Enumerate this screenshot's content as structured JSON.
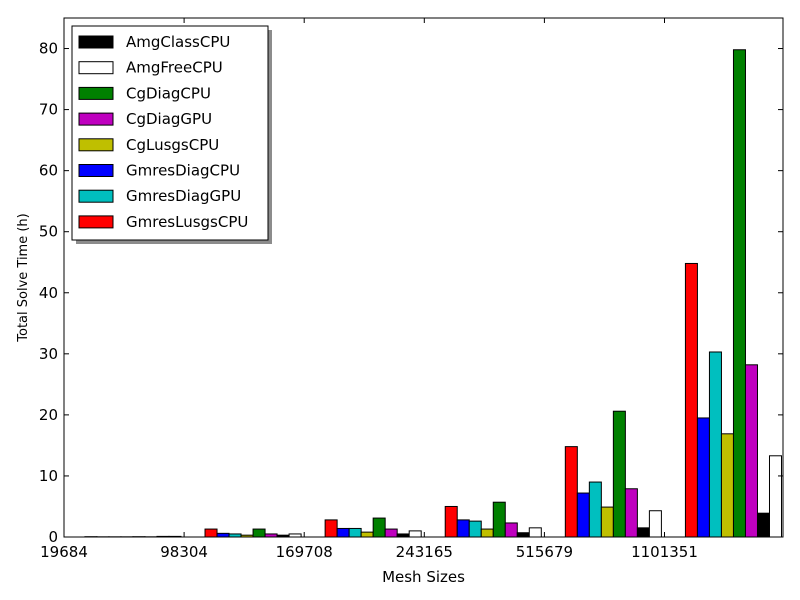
{
  "chart_data": {
    "type": "bar",
    "xlabel": "Mesh Sizes",
    "ylabel": "Total Solve Time (h)",
    "ylim": [
      0,
      85
    ],
    "yticks": [
      0,
      10,
      20,
      30,
      40,
      50,
      60,
      70,
      80
    ],
    "grid": false,
    "legend_position": "top-left",
    "categories": [
      "19684",
      "98304",
      "169708",
      "243165",
      "515679",
      "1101351"
    ],
    "series": [
      {
        "name": "GmresLusgsCPU",
        "color": "#ff0000",
        "values": [
          0.05,
          1.3,
          2.8,
          5.0,
          14.8,
          44.8
        ]
      },
      {
        "name": "GmresDiagCPU",
        "color": "#0000ff",
        "values": [
          0.03,
          0.6,
          1.4,
          2.8,
          7.2,
          19.5
        ]
      },
      {
        "name": "GmresDiagGPU",
        "color": "#00bfbf",
        "values": [
          0.03,
          0.5,
          1.4,
          2.6,
          9.0,
          30.3
        ]
      },
      {
        "name": "CgLusgsCPU",
        "color": "#bfbf00",
        "values": [
          0.03,
          0.3,
          0.8,
          1.3,
          4.9,
          16.9
        ]
      },
      {
        "name": "CgDiagCPU",
        "color": "#008000",
        "values": [
          0.05,
          1.3,
          3.1,
          5.7,
          20.6,
          79.8
        ]
      },
      {
        "name": "CgDiagGPU",
        "color": "#bf00bf",
        "values": [
          0.03,
          0.5,
          1.3,
          2.3,
          7.9,
          28.2
        ]
      },
      {
        "name": "AmgClassCPU",
        "color": "#000000",
        "values": [
          0.1,
          0.3,
          0.5,
          0.7,
          1.5,
          3.9
        ]
      },
      {
        "name": "AmgFreeCPU",
        "color": "#ffffff",
        "values": [
          0.1,
          0.5,
          1.0,
          1.5,
          4.3,
          13.3
        ]
      }
    ],
    "legend_order": [
      "AmgClassCPU",
      "AmgFreeCPU",
      "CgDiagCPU",
      "CgDiagGPU",
      "CgLusgsCPU",
      "GmresDiagCPU",
      "GmresDiagGPU",
      "GmresLusgsCPU"
    ]
  }
}
